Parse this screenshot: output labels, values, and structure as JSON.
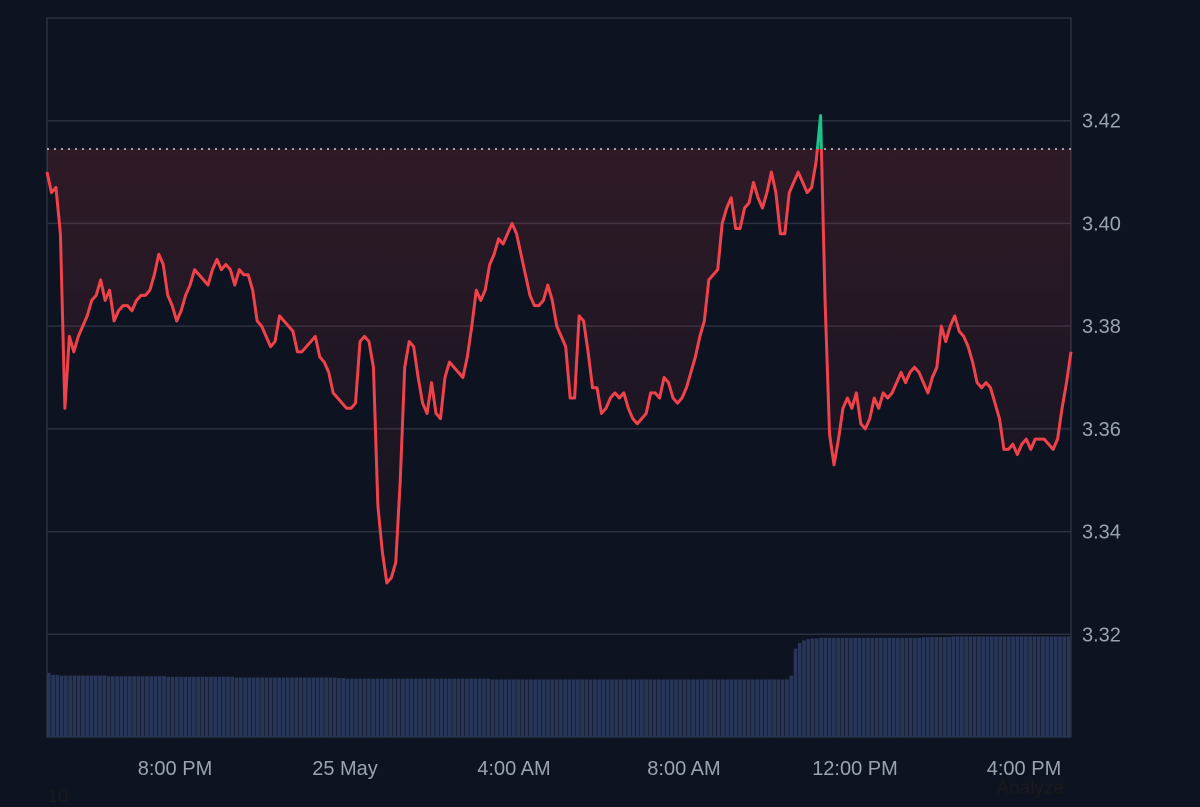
{
  "chart_data": {
    "type": "line",
    "title": "",
    "xlabel": "",
    "ylabel": "",
    "ylim": [
      3.3,
      3.44
    ],
    "y_ticks": [
      "3.42",
      "3.40",
      "3.38",
      "3.36",
      "3.34",
      "3.32"
    ],
    "x_ticks": [
      "8:00 PM",
      "25 May",
      "4:00 AM",
      "8:00 AM",
      "12:00 PM",
      "4:00 PM"
    ],
    "reference_value": 3.4145,
    "grid": true,
    "colors": {
      "below_reference": "#f0424b",
      "above_reference": "#19c38a",
      "volume": "#2a3659",
      "grid": "#2a3140",
      "background": "#0d1320"
    },
    "series": [
      {
        "values": [
          3.41,
          3.406,
          3.407,
          3.398,
          3.364,
          3.378,
          3.375,
          3.378,
          3.38,
          3.382,
          3.385,
          3.386,
          3.389,
          3.385,
          3.387,
          3.381,
          3.383,
          3.384,
          3.384,
          3.383,
          3.385,
          3.386,
          3.386,
          3.387,
          3.39,
          3.394,
          3.392,
          3.386,
          3.384,
          3.381,
          3.383,
          3.386,
          3.388,
          3.391,
          3.39,
          3.389,
          3.388,
          3.391,
          3.393,
          3.391,
          3.392,
          3.391,
          3.388,
          3.391,
          3.39,
          3.39,
          3.387,
          3.381,
          3.38,
          3.378,
          3.376,
          3.377,
          3.382,
          3.381,
          3.38,
          3.379,
          3.375,
          3.375,
          3.376,
          3.377,
          3.378,
          3.374,
          3.373,
          3.371,
          3.367,
          3.366,
          3.365,
          3.364,
          3.364,
          3.365,
          3.377,
          3.378,
          3.377,
          3.372,
          3.345,
          3.336,
          3.33,
          3.331,
          3.334,
          3.35,
          3.372,
          3.377,
          3.376,
          3.37,
          3.365,
          3.363,
          3.369,
          3.363,
          3.362,
          3.37,
          3.373,
          3.372,
          3.371,
          3.37,
          3.374,
          3.38,
          3.387,
          3.385,
          3.387,
          3.392,
          3.394,
          3.397,
          3.396,
          3.398,
          3.4,
          3.398,
          3.394,
          3.39,
          3.386,
          3.384,
          3.384,
          3.385,
          3.388,
          3.385,
          3.38,
          3.378,
          3.376,
          3.366,
          3.366,
          3.382,
          3.381,
          3.375,
          3.368,
          3.368,
          3.363,
          3.364,
          3.366,
          3.367,
          3.366,
          3.367,
          3.364,
          3.362,
          3.361,
          3.362,
          3.363,
          3.367,
          3.367,
          3.366,
          3.37,
          3.369,
          3.366,
          3.365,
          3.366,
          3.368,
          3.371,
          3.374,
          3.378,
          3.381,
          3.389,
          3.39,
          3.391,
          3.4,
          3.403,
          3.405,
          3.399,
          3.399,
          3.403,
          3.404,
          3.408,
          3.405,
          3.403,
          3.406,
          3.41,
          3.406,
          3.398,
          3.398,
          3.406,
          3.408,
          3.41,
          3.408,
          3.406,
          3.407,
          3.412,
          3.421,
          3.385,
          3.359,
          3.353,
          3.358,
          3.364,
          3.366,
          3.364,
          3.367,
          3.361,
          3.36,
          3.362,
          3.366,
          3.364,
          3.367,
          3.366,
          3.367,
          3.369,
          3.371,
          3.369,
          3.371,
          3.372,
          3.371,
          3.369,
          3.367,
          3.37,
          3.372,
          3.38,
          3.377,
          3.38,
          3.382,
          3.379,
          3.378,
          3.376,
          3.373,
          3.369,
          3.368,
          3.369,
          3.368,
          3.365,
          3.362,
          3.356,
          3.356,
          3.357,
          3.355,
          3.357,
          3.358,
          3.356,
          3.358,
          3.358,
          3.358,
          3.357,
          3.356,
          3.358,
          3.364,
          3.369,
          3.375
        ]
      }
    ],
    "volume": {
      "values": [
        1.0,
        0.97,
        0.97,
        0.96,
        0.96,
        0.96,
        0.96,
        0.96,
        0.96,
        0.96,
        0.96,
        0.96,
        0.96,
        0.96,
        0.95,
        0.95,
        0.95,
        0.95,
        0.95,
        0.95,
        0.95,
        0.95,
        0.95,
        0.95,
        0.95,
        0.95,
        0.95,
        0.95,
        0.94,
        0.94,
        0.94,
        0.94,
        0.94,
        0.94,
        0.94,
        0.94,
        0.94,
        0.94,
        0.94,
        0.94,
        0.94,
        0.94,
        0.94,
        0.94,
        0.93,
        0.93,
        0.93,
        0.93,
        0.93,
        0.93,
        0.93,
        0.93,
        0.93,
        0.93,
        0.93,
        0.93,
        0.93,
        0.93,
        0.93,
        0.93,
        0.93,
        0.93,
        0.93,
        0.93,
        0.93,
        0.93,
        0.93,
        0.93,
        0.92,
        0.92,
        0.91,
        0.91,
        0.91,
        0.91,
        0.91,
        0.91,
        0.91,
        0.91,
        0.91,
        0.91,
        0.91,
        0.91,
        0.91,
        0.91,
        0.91,
        0.91,
        0.91,
        0.91,
        0.91,
        0.91,
        0.91,
        0.91,
        0.91,
        0.91,
        0.91,
        0.91,
        0.91,
        0.91,
        0.91,
        0.91,
        0.91,
        0.91,
        0.91,
        0.91,
        0.9,
        0.9,
        0.9,
        0.9,
        0.9,
        0.9,
        0.9,
        0.9,
        0.9,
        0.9,
        0.9,
        0.9,
        0.9,
        0.9,
        0.9,
        0.9,
        0.9,
        0.9,
        0.9,
        0.9,
        0.9,
        0.9,
        0.9,
        0.9,
        0.9,
        0.9,
        0.9,
        0.9,
        0.9,
        0.9,
        0.9,
        0.9,
        0.9,
        0.9,
        0.9,
        0.9,
        0.9,
        0.9,
        0.9,
        0.9,
        0.9,
        0.9,
        0.9,
        0.9,
        0.9,
        0.9,
        0.9,
        0.9,
        0.9,
        0.9,
        0.9,
        0.9,
        0.9,
        0.9,
        0.9,
        0.9,
        0.9,
        0.9,
        0.9,
        0.9,
        0.9,
        0.9,
        0.9,
        0.9,
        0.9,
        0.9,
        0.9,
        0.9,
        0.9,
        0.9,
        0.96,
        1.38,
        1.47,
        1.51,
        1.53,
        1.54,
        1.54,
        1.55,
        1.55,
        1.55,
        1.55,
        1.55,
        1.55,
        1.55,
        1.55,
        1.55,
        1.55,
        1.55,
        1.55,
        1.55,
        1.55,
        1.55,
        1.55,
        1.55,
        1.55,
        1.55,
        1.55,
        1.55,
        1.55,
        1.55,
        1.55,
        1.56,
        1.56,
        1.56,
        1.56,
        1.56,
        1.56,
        1.56,
        1.57,
        1.57,
        1.57,
        1.57,
        1.57,
        1.57,
        1.57,
        1.57,
        1.57,
        1.57,
        1.57,
        1.57,
        1.57,
        1.57,
        1.57,
        1.57,
        1.57,
        1.57,
        1.57,
        1.57,
        1.57,
        1.57,
        1.57,
        1.57,
        1.57,
        1.57,
        1.57,
        1.57
      ]
    }
  },
  "footer": {
    "left_text": "10",
    "right_text": "Analyze"
  }
}
